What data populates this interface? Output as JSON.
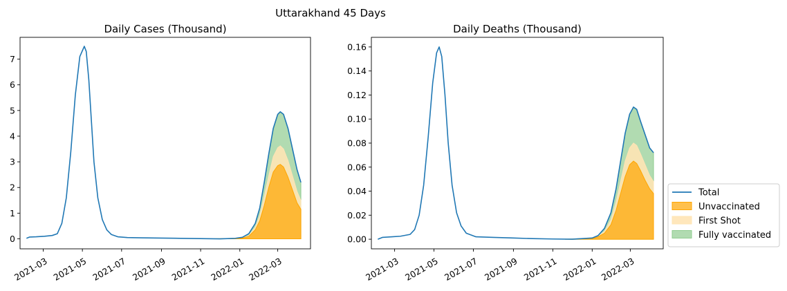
{
  "suptitle": "Uttarakhand 45 Days",
  "colors": {
    "total": "#1f77b4",
    "unvaccinated": "#ffa500",
    "first_shot": "#ffe4b5",
    "fully_vaccinated": "#90cc90"
  },
  "legend": {
    "placement": "right, outside the second chart",
    "items": [
      {
        "label": "Total",
        "kind": "line",
        "color": "#1f77b4"
      },
      {
        "label": "Unvaccinated",
        "kind": "patch",
        "color": "#ffa500"
      },
      {
        "label": "First Shot",
        "kind": "patch",
        "color": "#ffe4b5"
      },
      {
        "label": "Fully vaccinated",
        "kind": "patch",
        "color": "#90cc90"
      }
    ]
  },
  "chart_data": [
    {
      "type": "area",
      "title": "Daily Cases (Thousand)",
      "xlabel": "",
      "ylabel": "",
      "x_ticks": [
        "2021-03",
        "2021-05",
        "2021-07",
        "2021-09",
        "2021-11",
        "2022-01",
        "2022-03"
      ],
      "x_range": [
        "2021-01-24",
        "2022-04-21"
      ],
      "ylim": [
        -0.39,
        7.85
      ],
      "y_ticks": [
        0,
        1,
        2,
        3,
        4,
        5,
        6,
        7
      ],
      "grid": false,
      "series": [
        {
          "name": "Total",
          "kind": "line",
          "color": "#1f77b4",
          "points": [
            [
              "2021-02-03",
              0.02
            ],
            [
              "2021-02-08",
              0.07
            ],
            [
              "2021-02-18",
              0.08
            ],
            [
              "2021-03-03",
              0.1
            ],
            [
              "2021-03-15",
              0.13
            ],
            [
              "2021-03-23",
              0.2
            ],
            [
              "2021-03-30",
              0.6
            ],
            [
              "2021-04-06",
              1.6
            ],
            [
              "2021-04-13",
              3.4
            ],
            [
              "2021-04-20",
              5.6
            ],
            [
              "2021-04-27",
              7.1
            ],
            [
              "2021-05-04",
              7.5
            ],
            [
              "2021-05-07",
              7.3
            ],
            [
              "2021-05-11",
              6.2
            ],
            [
              "2021-05-15",
              4.6
            ],
            [
              "2021-05-19",
              3.0
            ],
            [
              "2021-05-25",
              1.6
            ],
            [
              "2021-06-01",
              0.75
            ],
            [
              "2021-06-08",
              0.35
            ],
            [
              "2021-06-15",
              0.17
            ],
            [
              "2021-06-25",
              0.08
            ],
            [
              "2021-07-10",
              0.05
            ],
            [
              "2021-08-01",
              0.04
            ],
            [
              "2021-09-01",
              0.03
            ],
            [
              "2021-10-01",
              0.02
            ],
            [
              "2021-11-01",
              0.01
            ],
            [
              "2021-12-01",
              0.0
            ],
            [
              "2021-12-25",
              0.02
            ],
            [
              "2022-01-05",
              0.06
            ],
            [
              "2022-01-15",
              0.2
            ],
            [
              "2022-01-25",
              0.6
            ],
            [
              "2022-02-01",
              1.2
            ],
            [
              "2022-02-08",
              2.2
            ],
            [
              "2022-02-15",
              3.3
            ],
            [
              "2022-02-22",
              4.3
            ],
            [
              "2022-03-01",
              4.85
            ],
            [
              "2022-03-05",
              4.95
            ],
            [
              "2022-03-10",
              4.85
            ],
            [
              "2022-03-17",
              4.3
            ],
            [
              "2022-03-24",
              3.5
            ],
            [
              "2022-03-31",
              2.7
            ],
            [
              "2022-04-06",
              2.2
            ]
          ]
        },
        {
          "name": "Unvaccinated",
          "kind": "area",
          "color": "#ffa500",
          "points": [
            [
              "2021-11-20",
              0.0
            ],
            [
              "2021-12-25",
              0.01
            ],
            [
              "2022-01-05",
              0.03
            ],
            [
              "2022-01-15",
              0.1
            ],
            [
              "2022-01-25",
              0.35
            ],
            [
              "2022-02-01",
              0.7
            ],
            [
              "2022-02-08",
              1.3
            ],
            [
              "2022-02-15",
              2.0
            ],
            [
              "2022-02-22",
              2.6
            ],
            [
              "2022-03-01",
              2.85
            ],
            [
              "2022-03-05",
              2.9
            ],
            [
              "2022-03-10",
              2.8
            ],
            [
              "2022-03-17",
              2.4
            ],
            [
              "2022-03-24",
              1.9
            ],
            [
              "2022-03-31",
              1.4
            ],
            [
              "2022-04-06",
              1.15
            ]
          ]
        },
        {
          "name": "First Shot",
          "kind": "area",
          "color": "#ffe4b5",
          "points": [
            [
              "2021-11-20",
              0.0
            ],
            [
              "2021-12-25",
              0.015
            ],
            [
              "2022-01-05",
              0.04
            ],
            [
              "2022-01-15",
              0.13
            ],
            [
              "2022-01-25",
              0.45
            ],
            [
              "2022-02-01",
              0.9
            ],
            [
              "2022-02-08",
              1.65
            ],
            [
              "2022-02-15",
              2.45
            ],
            [
              "2022-02-22",
              3.2
            ],
            [
              "2022-03-01",
              3.55
            ],
            [
              "2022-03-05",
              3.62
            ],
            [
              "2022-03-10",
              3.5
            ],
            [
              "2022-03-17",
              3.05
            ],
            [
              "2022-03-24",
              2.45
            ],
            [
              "2022-03-31",
              1.85
            ],
            [
              "2022-04-06",
              1.5
            ]
          ]
        },
        {
          "name": "Fully vaccinated",
          "kind": "area",
          "color": "#90cc90",
          "points": [
            [
              "2021-11-20",
              0.0
            ],
            [
              "2021-12-25",
              0.02
            ],
            [
              "2022-01-05",
              0.06
            ],
            [
              "2022-01-15",
              0.2
            ],
            [
              "2022-01-25",
              0.6
            ],
            [
              "2022-02-01",
              1.2
            ],
            [
              "2022-02-08",
              2.2
            ],
            [
              "2022-02-15",
              3.3
            ],
            [
              "2022-02-22",
              4.3
            ],
            [
              "2022-03-01",
              4.85
            ],
            [
              "2022-03-05",
              4.95
            ],
            [
              "2022-03-10",
              4.85
            ],
            [
              "2022-03-17",
              4.3
            ],
            [
              "2022-03-24",
              3.5
            ],
            [
              "2022-03-31",
              2.7
            ],
            [
              "2022-04-06",
              2.2
            ]
          ]
        }
      ]
    },
    {
      "type": "area",
      "title": "Daily Deaths (Thousand)",
      "xlabel": "",
      "ylabel": "",
      "x_ticks": [
        "2021-03",
        "2021-05",
        "2021-07",
        "2021-09",
        "2021-11",
        "2022-01",
        "2022-03"
      ],
      "x_range": [
        "2021-01-24",
        "2022-04-21"
      ],
      "ylim": [
        -0.008,
        0.168
      ],
      "y_ticks": [
        0.0,
        0.02,
        0.04,
        0.06,
        0.08,
        0.1,
        0.12,
        0.14,
        0.16
      ],
      "grid": false,
      "series": [
        {
          "name": "Total",
          "kind": "line",
          "color": "#1f77b4",
          "points": [
            [
              "2021-02-03",
              0.0
            ],
            [
              "2021-02-10",
              0.0015
            ],
            [
              "2021-02-25",
              0.002
            ],
            [
              "2021-03-10",
              0.0025
            ],
            [
              "2021-03-25",
              0.004
            ],
            [
              "2021-04-01",
              0.008
            ],
            [
              "2021-04-08",
              0.02
            ],
            [
              "2021-04-15",
              0.045
            ],
            [
              "2021-04-22",
              0.085
            ],
            [
              "2021-04-29",
              0.13
            ],
            [
              "2021-05-05",
              0.155
            ],
            [
              "2021-05-09",
              0.16
            ],
            [
              "2021-05-13",
              0.152
            ],
            [
              "2021-05-18",
              0.12
            ],
            [
              "2021-05-23",
              0.08
            ],
            [
              "2021-05-29",
              0.045
            ],
            [
              "2021-06-05",
              0.022
            ],
            [
              "2021-06-12",
              0.011
            ],
            [
              "2021-06-20",
              0.005
            ],
            [
              "2021-07-05",
              0.002
            ],
            [
              "2021-08-01",
              0.0015
            ],
            [
              "2021-09-01",
              0.001
            ],
            [
              "2021-10-01",
              0.0005
            ],
            [
              "2021-11-01",
              0.0002
            ],
            [
              "2021-12-01",
              0.0
            ],
            [
              "2022-01-01",
              0.001
            ],
            [
              "2022-01-10",
              0.003
            ],
            [
              "2022-01-20",
              0.009
            ],
            [
              "2022-01-30",
              0.022
            ],
            [
              "2022-02-07",
              0.042
            ],
            [
              "2022-02-14",
              0.065
            ],
            [
              "2022-02-21",
              0.088
            ],
            [
              "2022-02-28",
              0.104
            ],
            [
              "2022-03-06",
              0.11
            ],
            [
              "2022-03-11",
              0.108
            ],
            [
              "2022-03-17",
              0.098
            ],
            [
              "2022-03-24",
              0.087
            ],
            [
              "2022-03-31",
              0.076
            ],
            [
              "2022-04-06",
              0.072
            ]
          ]
        },
        {
          "name": "Unvaccinated",
          "kind": "area",
          "color": "#ffa500",
          "points": [
            [
              "2021-11-20",
              0.0
            ],
            [
              "2022-01-01",
              0.0005
            ],
            [
              "2022-01-10",
              0.002
            ],
            [
              "2022-01-20",
              0.005
            ],
            [
              "2022-01-30",
              0.012
            ],
            [
              "2022-02-07",
              0.024
            ],
            [
              "2022-02-14",
              0.038
            ],
            [
              "2022-02-21",
              0.052
            ],
            [
              "2022-02-28",
              0.062
            ],
            [
              "2022-03-06",
              0.065
            ],
            [
              "2022-03-11",
              0.063
            ],
            [
              "2022-03-17",
              0.057
            ],
            [
              "2022-03-24",
              0.049
            ],
            [
              "2022-03-31",
              0.042
            ],
            [
              "2022-04-06",
              0.038
            ]
          ]
        },
        {
          "name": "First Shot",
          "kind": "area",
          "color": "#ffe4b5",
          "points": [
            [
              "2021-11-20",
              0.0
            ],
            [
              "2022-01-01",
              0.0007
            ],
            [
              "2022-01-10",
              0.0025
            ],
            [
              "2022-01-20",
              0.0065
            ],
            [
              "2022-01-30",
              0.016
            ],
            [
              "2022-02-07",
              0.031
            ],
            [
              "2022-02-14",
              0.048
            ],
            [
              "2022-02-21",
              0.065
            ],
            [
              "2022-02-28",
              0.076
            ],
            [
              "2022-03-06",
              0.08
            ],
            [
              "2022-03-11",
              0.078
            ],
            [
              "2022-03-17",
              0.071
            ],
            [
              "2022-03-24",
              0.062
            ],
            [
              "2022-03-31",
              0.053
            ],
            [
              "2022-04-06",
              0.048
            ]
          ]
        },
        {
          "name": "Fully vaccinated",
          "kind": "area",
          "color": "#90cc90",
          "points": [
            [
              "2021-11-20",
              0.0
            ],
            [
              "2022-01-01",
              0.001
            ],
            [
              "2022-01-10",
              0.003
            ],
            [
              "2022-01-20",
              0.009
            ],
            [
              "2022-01-30",
              0.022
            ],
            [
              "2022-02-07",
              0.042
            ],
            [
              "2022-02-14",
              0.065
            ],
            [
              "2022-02-21",
              0.088
            ],
            [
              "2022-02-28",
              0.104
            ],
            [
              "2022-03-06",
              0.11
            ],
            [
              "2022-03-11",
              0.108
            ],
            [
              "2022-03-17",
              0.098
            ],
            [
              "2022-03-24",
              0.087
            ],
            [
              "2022-03-31",
              0.076
            ],
            [
              "2022-04-06",
              0.072
            ]
          ]
        }
      ]
    }
  ]
}
